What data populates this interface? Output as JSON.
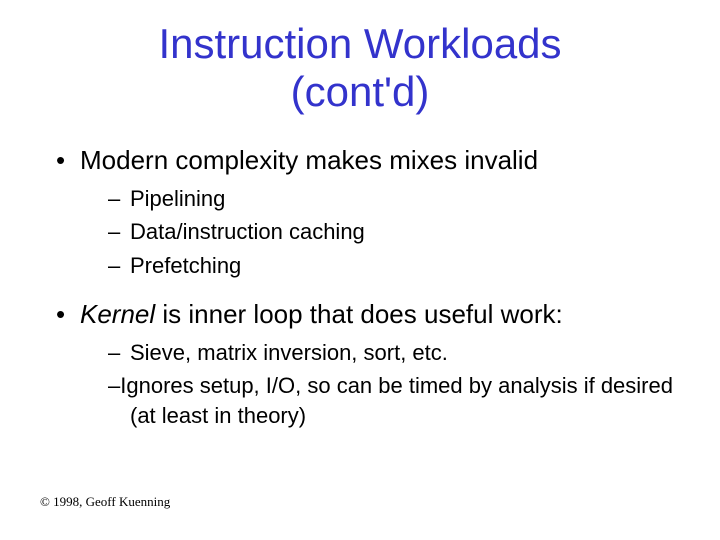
{
  "title_line1": "Instruction Workloads",
  "title_line2": "(cont'd)",
  "title_fontsize": 42,
  "title_color": "#3333cc",
  "bullets": {
    "b1": {
      "text": "Modern complexity makes mixes invalid",
      "subs": {
        "s1": "Pipelining",
        "s2": "Data/instruction caching",
        "s3": "Prefetching"
      }
    },
    "b2": {
      "prefix_italic": "Kernel",
      "rest": " is inner loop that does useful work:",
      "subs": {
        "s1": "Sieve, matrix inversion, sort, etc.",
        "s2": "Ignores setup, I/O, so can be timed by analysis if desired (at least in theory)"
      }
    }
  },
  "l1_fontsize": 26,
  "l2_fontsize": 22,
  "copyright": "© 1998, Geoff Kuenning",
  "background_color": "#ffffff"
}
